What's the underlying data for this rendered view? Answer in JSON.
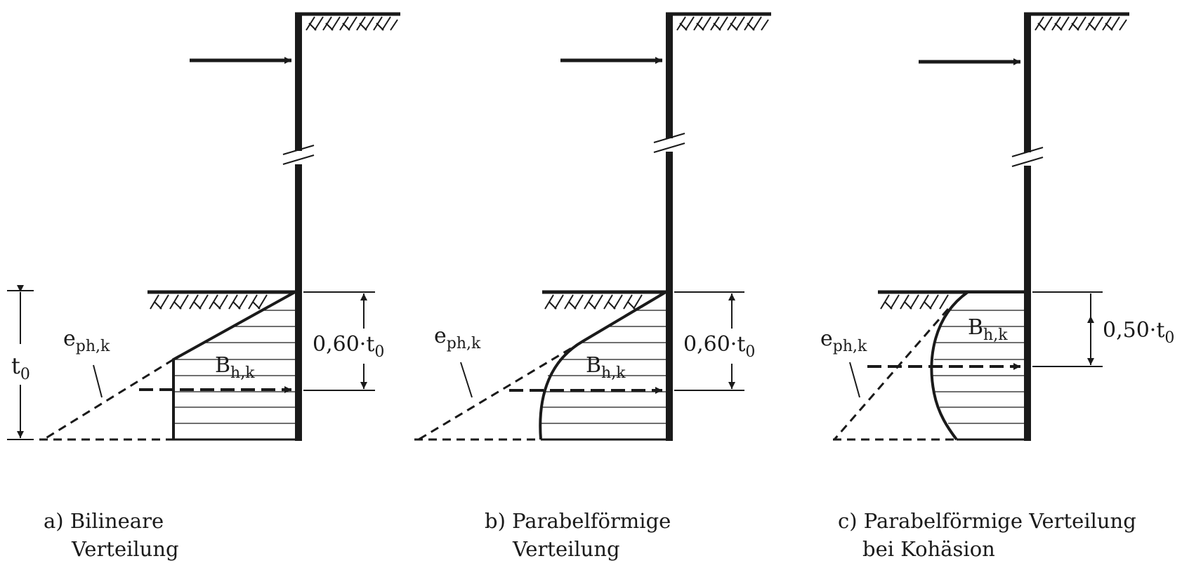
{
  "colors": {
    "ink": "#1a1a1a",
    "background": "#ffffff"
  },
  "panels": [
    {
      "id": "a",
      "label_t0": "t",
      "label_t0_sub": "0",
      "label_eph": "e",
      "label_eph_sub": "ph,k",
      "label_B": "B",
      "label_B_sub": "h,k",
      "dimension": "0,60·t",
      "dimension_sub": "0",
      "caption_line1": "a) Bilineare",
      "caption_line2": "Verteilung"
    },
    {
      "id": "b",
      "label_eph": "e",
      "label_eph_sub": "ph,k",
      "label_B": "B",
      "label_B_sub": "h,k",
      "dimension": "0,60·t",
      "dimension_sub": "0",
      "caption_line1": "b) Parabelförmige",
      "caption_line2": "Verteilung"
    },
    {
      "id": "c",
      "label_eph": "e",
      "label_eph_sub": "ph,k",
      "label_B": "B",
      "label_B_sub": "h,k",
      "dimension": "0,50·t",
      "dimension_sub": "0",
      "caption_line1": "c) Parabelförmige Verteilung",
      "caption_line2": "bei Kohäsion"
    }
  ]
}
